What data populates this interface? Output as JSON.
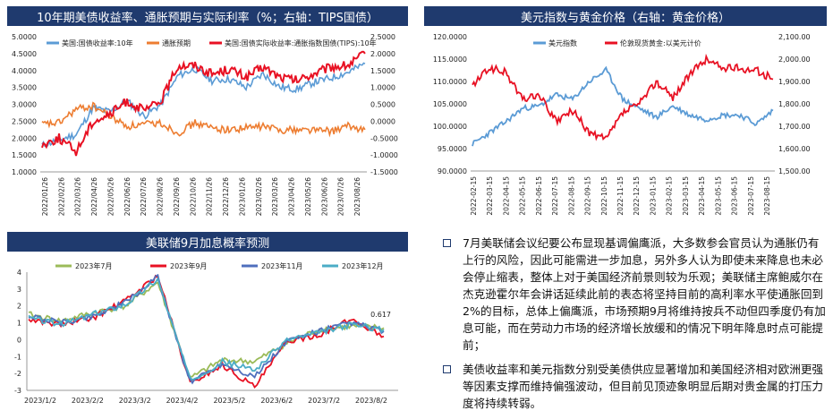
{
  "panel1": {
    "header": "10年期美债收益率、通胀预期与实际利率（%；右轴：TIPS国债）",
    "chart_data": {
      "type": "line",
      "x_ticks": [
        "2022/01/26",
        "2022/02/26",
        "2022/03/26",
        "2022/04/26",
        "2022/05/26",
        "2022/06/26",
        "2022/07/26",
        "2022/08/26",
        "2022/09/26",
        "2022/10/26",
        "2022/11/26",
        "2022/12/26",
        "2023/01/26",
        "2023/02/26",
        "2023/03/26",
        "2023/04/26",
        "2023/05/26",
        "2023/06/26",
        "2023/07/26",
        "2023/08/26"
      ],
      "ylim_left": [
        1.0,
        5.0
      ],
      "y_ticks_left": [
        "5.0000",
        "4.5000",
        "4.0000",
        "3.5000",
        "3.0000",
        "2.5000",
        "2.0000",
        "1.5000",
        "1.0000"
      ],
      "ylim_right": [
        -1.5,
        2.5
      ],
      "y_ticks_right": [
        "2.5000",
        "2.0000",
        "1.5000",
        "1.0000",
        "0.5000",
        "0.0000",
        "-0.5000",
        "-1.0000",
        "-1.5000"
      ],
      "series": [
        {
          "name": "美国:国债收益率:10年",
          "color": "#5b9bd5",
          "axis": "left",
          "values": [
            1.78,
            1.95,
            2.1,
            2.9,
            2.78,
            3.1,
            2.65,
            3.0,
            3.85,
            4.05,
            3.7,
            3.75,
            3.5,
            3.9,
            3.5,
            3.45,
            3.65,
            3.78,
            3.95,
            4.2
          ]
        },
        {
          "name": "通胀预期",
          "color": "#ed7d31",
          "axis": "left",
          "values": [
            2.4,
            2.45,
            2.85,
            2.95,
            2.65,
            2.35,
            2.4,
            2.45,
            2.15,
            2.45,
            2.3,
            2.25,
            2.3,
            2.35,
            2.25,
            2.25,
            2.25,
            2.2,
            2.35,
            2.25
          ]
        },
        {
          "name": "美国:国债实际收益率:通胀指数国债(TIPS):10年",
          "color": "#e81123",
          "axis": "right",
          "values": [
            -0.7,
            -0.5,
            -0.9,
            0.0,
            0.2,
            0.6,
            0.3,
            0.6,
            1.65,
            1.65,
            1.4,
            1.55,
            1.3,
            1.6,
            1.3,
            1.2,
            1.4,
            1.6,
            1.65,
            2.0
          ]
        }
      ]
    }
  },
  "panel2": {
    "header": "美元指数与黄金价格（右轴：黄金价格）",
    "chart_data": {
      "type": "line",
      "x_ticks": [
        "2022-02-15",
        "2022-03-15",
        "2022-04-15",
        "2022-05-15",
        "2022-06-15",
        "2022-07-15",
        "2022-08-15",
        "2022-09-15",
        "2022-10-15",
        "2022-11-15",
        "2022-12-15",
        "2023-01-15",
        "2023-02-15",
        "2023-03-15",
        "2023-04-15",
        "2023-05-15",
        "2023-06-15",
        "2023-07-15",
        "2023-08-15"
      ],
      "ylim_left": [
        90,
        120
      ],
      "y_ticks_left": [
        "120.0000",
        "115.0000",
        "110.0000",
        "105.0000",
        "100.0000",
        "95.0000",
        "90.0000"
      ],
      "ylim_right": [
        1500,
        2100
      ],
      "y_ticks_right": [
        "2,100.00",
        "2,000.00",
        "1,900.00",
        "1,800.00",
        "1,700.00",
        "1,600.00",
        "1,500.00"
      ],
      "series": [
        {
          "name": "美元指数",
          "color": "#5b9bd5",
          "axis": "left",
          "values": [
            96.0,
            98.5,
            101.0,
            104.0,
            104.5,
            107.0,
            106.0,
            110.0,
            112.5,
            106.0,
            104.0,
            102.0,
            104.5,
            102.5,
            101.5,
            102.5,
            102.5,
            100.5,
            103.5
          ]
        },
        {
          "name": "伦敦现货黄金:以美元计价",
          "color": "#e81123",
          "axis": "right",
          "values": [
            1880,
            1960,
            1940,
            1820,
            1840,
            1720,
            1770,
            1670,
            1640,
            1760,
            1800,
            1900,
            1830,
            1930,
            2000,
            1960,
            1960,
            1950,
            1910
          ]
        }
      ]
    }
  },
  "panel3": {
    "header": "美联储9月加息概率预测",
    "chart_data": {
      "type": "line",
      "x_ticks": [
        "2023/1/2",
        "2023/2/2",
        "2023/3/2",
        "2023/4/2",
        "2023/5/2",
        "2023/6/2",
        "2023/7/2",
        "2023/8/2"
      ],
      "ylim": [
        -3,
        4
      ],
      "y_ticks": [
        "4",
        "3",
        "2",
        "1",
        "0",
        "-1",
        "-2",
        "-3"
      ],
      "annotation": "0.617",
      "series": [
        {
          "name": "2023年7月",
          "color": "#9bbb59",
          "values": [
            1.5,
            1.1,
            1.6,
            2.0,
            3.4,
            -2.3,
            -1.2,
            -1.3,
            -0.2,
            0.6,
            0.8,
            0.7
          ]
        },
        {
          "name": "2023年9月",
          "color": "#e81123",
          "values": [
            1.2,
            0.9,
            1.3,
            2.3,
            3.8,
            -2.6,
            -1.5,
            -2.8,
            -0.1,
            0.3,
            1.2,
            0.2
          ]
        },
        {
          "name": "2023年11月",
          "color": "#4f6fbd",
          "values": [
            1.4,
            1.0,
            1.4,
            2.2,
            3.7,
            -2.5,
            -1.4,
            -2.2,
            -0.1,
            0.5,
            1.0,
            0.5
          ]
        },
        {
          "name": "2023年12月",
          "color": "#4bacc6",
          "values": [
            1.3,
            0.9,
            1.5,
            2.1,
            3.6,
            -2.4,
            -1.3,
            -1.8,
            0.0,
            0.4,
            0.9,
            0.6
          ]
        }
      ]
    }
  },
  "bullets": [
    {
      "text": "7月美联储会议纪要公布显现基调偏鹰派，大多数参会官员认为通胀仍有上行的风险，因此可能需进一步加息，另外多人认为即使未来降息也未必会停止缩表，整体上对于美国经济前景则较为乐观；美联储主席鲍威尔在杰克逊霍尔年会讲话延续此前的表态将坚持目前的高利率水平使通胀回到2%的目标，总体上偏鹰派，市场预期9月将维持按兵不动但四季度仍有加息可能，而在劳动力市场的经济增长放缓和的情况下明年降息时点可能提前；"
    },
    {
      "text": "美债收益率和美元指数分别受美债供应显著增加和美国经济相对欧洲更强等因素支撑而维持偏强波动，但目前见顶迹象明显后期对贵金属的打压力度将持续转弱。"
    }
  ]
}
